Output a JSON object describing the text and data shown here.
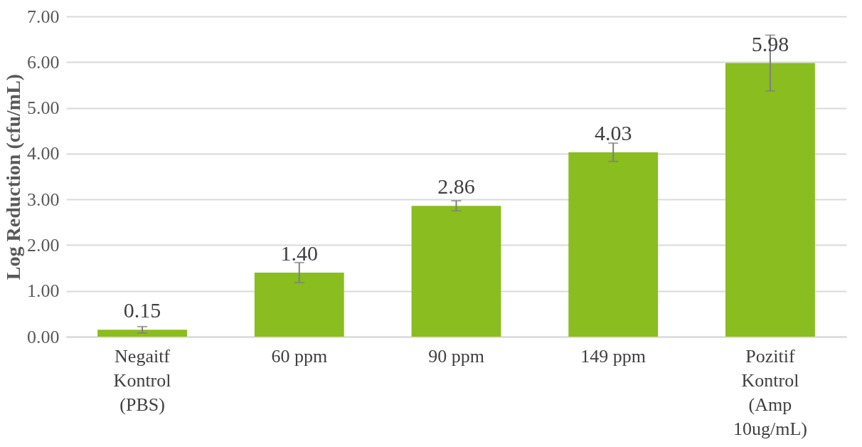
{
  "chart_data": {
    "type": "bar",
    "ylabel": "Log Reduction (cfu/mL)",
    "categories": [
      "Negaitf Kontrol (PBS)",
      "60 ppm",
      "90 ppm",
      "149 ppm",
      "Pozitif Kontrol (Amp 10ug/mL)"
    ],
    "values": [
      0.15,
      1.4,
      2.86,
      4.03,
      5.98
    ],
    "errors": [
      0.07,
      0.22,
      0.11,
      0.2,
      0.61
    ],
    "color": "#8abd1f",
    "ylim": [
      0,
      7
    ],
    "yticks": [
      {
        "value": 0,
        "label": "0.00"
      },
      {
        "value": 1,
        "label": "1.00"
      },
      {
        "value": 2,
        "label": "2.00"
      },
      {
        "value": 3,
        "label": "3.00"
      },
      {
        "value": 4,
        "label": "4.00"
      },
      {
        "value": 5,
        "label": "5.00"
      },
      {
        "value": 6,
        "label": "6.00"
      },
      {
        "value": 7,
        "label": "7.00"
      }
    ],
    "value_labels": [
      "0.15",
      "1.40",
      "2.86",
      "4.03",
      "5.98"
    ],
    "grid": "y"
  }
}
